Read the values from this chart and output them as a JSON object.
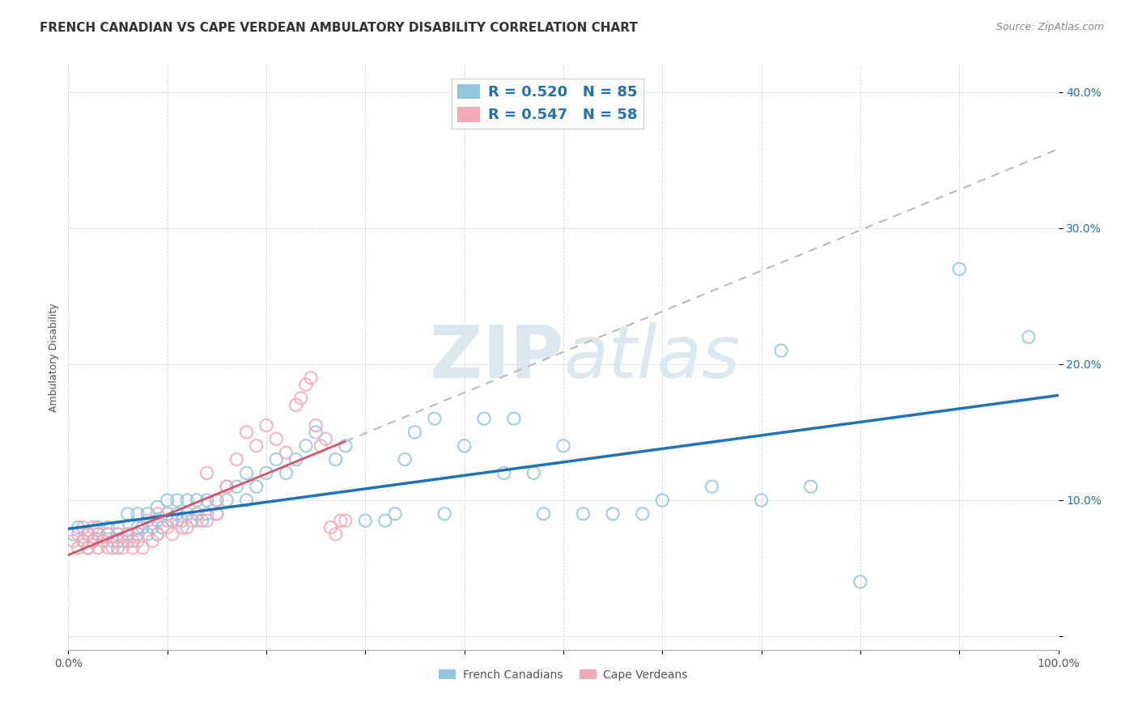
{
  "title": "FRENCH CANADIAN VS CAPE VERDEAN AMBULATORY DISABILITY CORRELATION CHART",
  "source": "Source: ZipAtlas.com",
  "ylabel": "Ambulatory Disability",
  "xlim": [
    0.0,
    1.0
  ],
  "ylim": [
    -0.01,
    0.42
  ],
  "x_ticks": [
    0.0,
    0.1,
    0.2,
    0.3,
    0.4,
    0.5,
    0.6,
    0.7,
    0.8,
    0.9,
    1.0
  ],
  "x_tick_labels": [
    "0.0%",
    "",
    "",
    "",
    "",
    "",
    "",
    "",
    "",
    "",
    "100.0%"
  ],
  "y_ticks": [
    0.0,
    0.1,
    0.2,
    0.3,
    0.4
  ],
  "y_tick_labels": [
    "",
    "10.0%",
    "20.0%",
    "30.0%",
    "40.0%"
  ],
  "blue_scatter_color": "#92c5de",
  "pink_scatter_color": "#f4a8b8",
  "blue_line_color": "#2171b5",
  "pink_line_color": "#d6536d",
  "dashed_line_color": "#c0b8b8",
  "legend_text_color": "#2171b5",
  "watermark_color": "#dce8f0",
  "background_color": "#ffffff",
  "grid_color": "#cccccc",
  "R_blue": 0.52,
  "N_blue": 85,
  "R_pink": 0.547,
  "N_pink": 58,
  "fc_x": [
    0.005,
    0.01,
    0.015,
    0.02,
    0.02,
    0.025,
    0.03,
    0.03,
    0.035,
    0.04,
    0.04,
    0.045,
    0.05,
    0.05,
    0.05,
    0.055,
    0.06,
    0.06,
    0.065,
    0.07,
    0.07,
    0.07,
    0.075,
    0.08,
    0.08,
    0.085,
    0.09,
    0.09,
    0.09,
    0.095,
    0.1,
    0.1,
    0.105,
    0.11,
    0.11,
    0.115,
    0.12,
    0.12,
    0.125,
    0.13,
    0.13,
    0.135,
    0.14,
    0.14,
    0.15,
    0.15,
    0.16,
    0.16,
    0.17,
    0.18,
    0.18,
    0.19,
    0.2,
    0.21,
    0.22,
    0.23,
    0.24,
    0.25,
    0.27,
    0.28,
    0.3,
    0.32,
    0.33,
    0.34,
    0.35,
    0.37,
    0.38,
    0.4,
    0.42,
    0.44,
    0.45,
    0.47,
    0.48,
    0.5,
    0.52,
    0.55,
    0.58,
    0.6,
    0.65,
    0.7,
    0.72,
    0.75,
    0.8,
    0.9,
    0.97
  ],
  "fc_y": [
    0.075,
    0.08,
    0.07,
    0.075,
    0.065,
    0.07,
    0.075,
    0.08,
    0.07,
    0.075,
    0.08,
    0.07,
    0.075,
    0.08,
    0.065,
    0.07,
    0.075,
    0.09,
    0.07,
    0.075,
    0.08,
    0.09,
    0.08,
    0.075,
    0.09,
    0.08,
    0.075,
    0.085,
    0.095,
    0.08,
    0.09,
    0.1,
    0.085,
    0.09,
    0.1,
    0.085,
    0.09,
    0.1,
    0.085,
    0.09,
    0.1,
    0.085,
    0.09,
    0.1,
    0.09,
    0.1,
    0.11,
    0.1,
    0.11,
    0.1,
    0.12,
    0.11,
    0.12,
    0.13,
    0.12,
    0.13,
    0.14,
    0.15,
    0.13,
    0.14,
    0.085,
    0.085,
    0.09,
    0.13,
    0.15,
    0.16,
    0.09,
    0.14,
    0.16,
    0.12,
    0.16,
    0.12,
    0.09,
    0.14,
    0.09,
    0.09,
    0.09,
    0.1,
    0.11,
    0.1,
    0.21,
    0.11,
    0.04,
    0.27,
    0.22
  ],
  "cv_x": [
    0.005,
    0.01,
    0.01,
    0.015,
    0.015,
    0.02,
    0.02,
    0.025,
    0.025,
    0.03,
    0.03,
    0.035,
    0.04,
    0.04,
    0.045,
    0.05,
    0.05,
    0.055,
    0.06,
    0.06,
    0.065,
    0.07,
    0.07,
    0.075,
    0.08,
    0.085,
    0.09,
    0.09,
    0.1,
    0.1,
    0.105,
    0.11,
    0.115,
    0.12,
    0.13,
    0.13,
    0.14,
    0.14,
    0.15,
    0.15,
    0.16,
    0.17,
    0.18,
    0.19,
    0.2,
    0.21,
    0.22,
    0.23,
    0.235,
    0.24,
    0.245,
    0.25,
    0.255,
    0.26,
    0.265,
    0.27,
    0.275,
    0.28
  ],
  "cv_y": [
    0.07,
    0.065,
    0.075,
    0.07,
    0.08,
    0.065,
    0.075,
    0.07,
    0.08,
    0.065,
    0.075,
    0.07,
    0.065,
    0.075,
    0.065,
    0.07,
    0.075,
    0.065,
    0.07,
    0.075,
    0.065,
    0.07,
    0.075,
    0.065,
    0.085,
    0.07,
    0.075,
    0.09,
    0.08,
    0.085,
    0.075,
    0.085,
    0.08,
    0.08,
    0.09,
    0.085,
    0.085,
    0.12,
    0.09,
    0.1,
    0.11,
    0.13,
    0.15,
    0.14,
    0.155,
    0.145,
    0.135,
    0.17,
    0.175,
    0.185,
    0.19,
    0.155,
    0.14,
    0.145,
    0.08,
    0.075,
    0.085,
    0.085
  ],
  "title_fontsize": 11,
  "axis_label_fontsize": 9,
  "tick_fontsize": 10,
  "legend_fontsize": 13,
  "watermark_fontsize": 65
}
